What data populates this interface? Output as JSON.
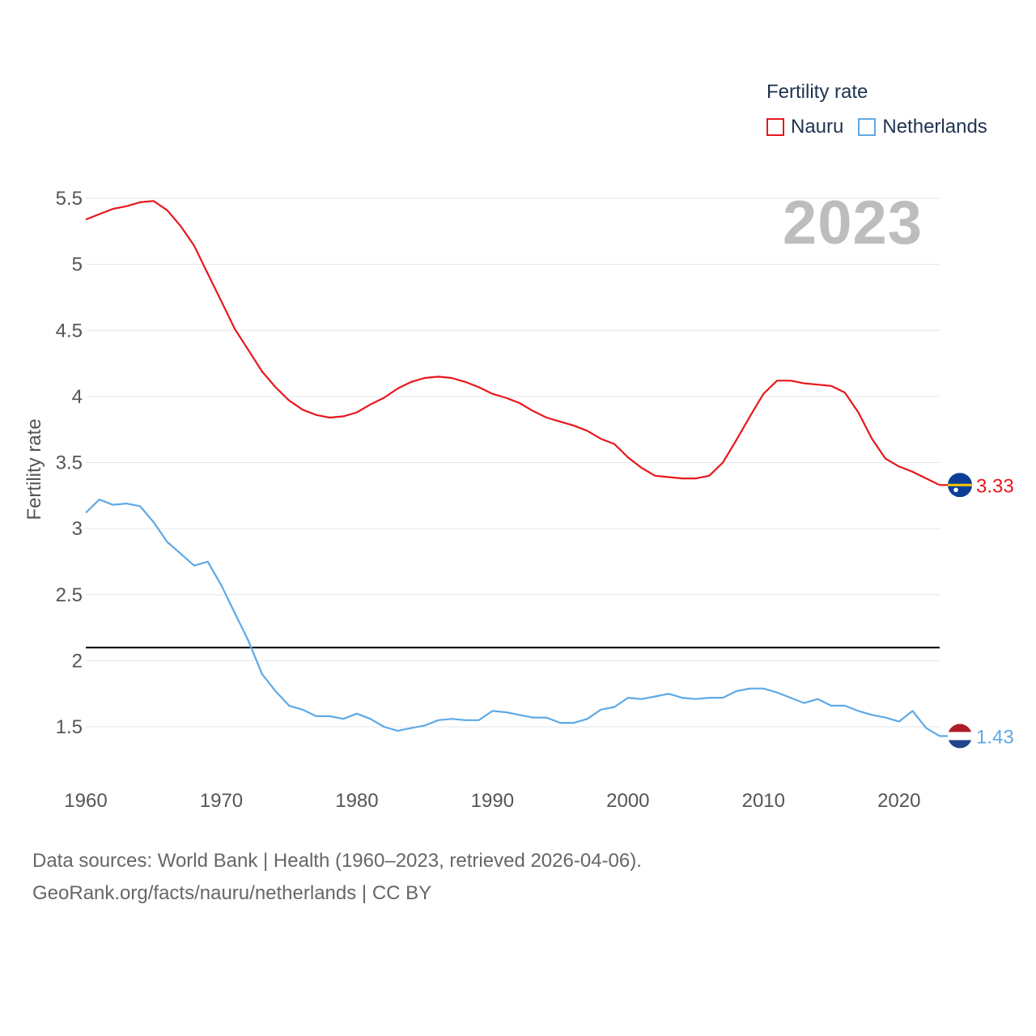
{
  "legend": {
    "title": "Fertility rate",
    "items": [
      {
        "label": "Nauru",
        "color": "#e8171c"
      },
      {
        "label": "Netherlands",
        "color": "#5ea9e6"
      }
    ]
  },
  "year_watermark": "2023",
  "footer": {
    "line1": "Data sources: World Bank | Health (1960–2023, retrieved 2026-04-06).",
    "line2": "GeoRank.org/facts/nauru/netherlands | CC BY"
  },
  "chart_data": {
    "type": "line",
    "ylabel": "Fertility rate",
    "xlabel": "",
    "xlim": [
      1960,
      2023
    ],
    "ylim": [
      1.25,
      5.55
    ],
    "xticks": [
      1960,
      1970,
      1980,
      1990,
      2000,
      2010,
      2020
    ],
    "yticks": [
      1.5,
      2,
      2.5,
      3,
      3.5,
      4,
      4.5,
      5,
      5.5
    ],
    "ytick_labels": [
      "1.5",
      "2",
      "2.5",
      "3",
      "3.5",
      "4",
      "4.5",
      "5",
      "5.5"
    ],
    "reference_line": {
      "value": 2.1,
      "color": "#000000"
    },
    "series": [
      {
        "name": "Nauru",
        "color": "#e8171c",
        "end_label": "3.33",
        "flag": "nauru",
        "x": [
          1960,
          1961,
          1962,
          1963,
          1964,
          1965,
          1966,
          1967,
          1968,
          1969,
          1970,
          1971,
          1972,
          1973,
          1974,
          1975,
          1976,
          1977,
          1978,
          1979,
          1980,
          1981,
          1982,
          1983,
          1984,
          1985,
          1986,
          1987,
          1988,
          1989,
          1990,
          1991,
          1992,
          1993,
          1994,
          1995,
          1996,
          1997,
          1998,
          1999,
          2000,
          2001,
          2002,
          2003,
          2004,
          2005,
          2006,
          2007,
          2008,
          2009,
          2010,
          2011,
          2012,
          2013,
          2014,
          2015,
          2016,
          2017,
          2018,
          2019,
          2020,
          2021,
          2022,
          2023
        ],
        "y": [
          5.34,
          5.38,
          5.42,
          5.44,
          5.47,
          5.48,
          5.41,
          5.29,
          5.14,
          4.93,
          4.72,
          4.51,
          4.35,
          4.19,
          4.07,
          3.97,
          3.9,
          3.86,
          3.84,
          3.85,
          3.88,
          3.94,
          3.99,
          4.06,
          4.11,
          4.14,
          4.15,
          4.14,
          4.11,
          4.07,
          4.02,
          3.99,
          3.95,
          3.89,
          3.84,
          3.81,
          3.78,
          3.74,
          3.68,
          3.64,
          3.54,
          3.46,
          3.4,
          3.39,
          3.38,
          3.38,
          3.4,
          3.5,
          3.67,
          3.85,
          4.02,
          4.12,
          4.12,
          4.1,
          4.09,
          4.08,
          4.03,
          3.88,
          3.68,
          3.53,
          3.47,
          3.43,
          3.38,
          3.33
        ]
      },
      {
        "name": "Netherlands",
        "color": "#5ea9e6",
        "end_label": "1.43",
        "flag": "netherlands",
        "x": [
          1960,
          1961,
          1962,
          1963,
          1964,
          1965,
          1966,
          1967,
          1968,
          1969,
          1970,
          1971,
          1972,
          1973,
          1974,
          1975,
          1976,
          1977,
          1978,
          1979,
          1980,
          1981,
          1982,
          1983,
          1984,
          1985,
          1986,
          1987,
          1988,
          1989,
          1990,
          1991,
          1992,
          1993,
          1994,
          1995,
          1996,
          1997,
          1998,
          1999,
          2000,
          2001,
          2002,
          2003,
          2004,
          2005,
          2006,
          2007,
          2008,
          2009,
          2010,
          2011,
          2012,
          2013,
          2014,
          2015,
          2016,
          2017,
          2018,
          2019,
          2020,
          2021,
          2022,
          2023
        ],
        "y": [
          3.12,
          3.22,
          3.18,
          3.19,
          3.17,
          3.05,
          2.9,
          2.81,
          2.72,
          2.75,
          2.57,
          2.36,
          2.15,
          1.9,
          1.77,
          1.66,
          1.63,
          1.58,
          1.58,
          1.56,
          1.6,
          1.56,
          1.5,
          1.47,
          1.49,
          1.51,
          1.55,
          1.56,
          1.55,
          1.55,
          1.62,
          1.61,
          1.59,
          1.57,
          1.57,
          1.53,
          1.53,
          1.56,
          1.63,
          1.65,
          1.72,
          1.71,
          1.73,
          1.75,
          1.72,
          1.71,
          1.72,
          1.72,
          1.77,
          1.79,
          1.79,
          1.76,
          1.72,
          1.68,
          1.71,
          1.66,
          1.66,
          1.62,
          1.59,
          1.57,
          1.54,
          1.62,
          1.49,
          1.43
        ]
      }
    ]
  }
}
